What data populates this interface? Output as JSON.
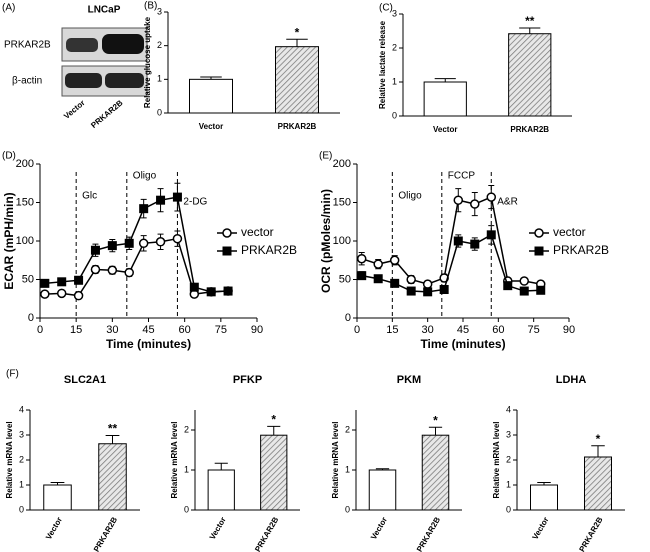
{
  "blot": {
    "panel": "(A)",
    "title": "LNCaP",
    "rows": [
      "PRKAR2B",
      "β-actin"
    ],
    "lanes": [
      "Vector",
      "PRKAR2B"
    ]
  },
  "chart_data": [
    {
      "panel": "(B)",
      "type": "bar",
      "categories": [
        "Vector",
        "PRKAR2B"
      ],
      "values": [
        1.0,
        1.97
      ],
      "errors": [
        0.07,
        0.22
      ],
      "colors": [
        "#ffffff",
        "#c4c4c4"
      ],
      "y_label": "Relative glucose uptake",
      "ylim": [
        0,
        3
      ],
      "yticks": [
        0,
        1,
        2,
        3
      ],
      "annotation": "*"
    },
    {
      "panel": "(C)",
      "type": "bar",
      "categories": [
        "Vector",
        "PRKAR2B"
      ],
      "values": [
        1.0,
        2.42
      ],
      "errors": [
        0.1,
        0.17
      ],
      "colors": [
        "#ffffff",
        "#c4c4c4"
      ],
      "y_label": "Relative lactate release",
      "ylim": [
        0,
        3
      ],
      "yticks": [
        0,
        1,
        2,
        3
      ],
      "annotation": "**"
    },
    {
      "panel": "(D)",
      "type": "line",
      "x_label": "Time (minutes)",
      "y_label": "ECAR (mPH/min)",
      "x": [
        2,
        9,
        16,
        23,
        30,
        37,
        43,
        50,
        57,
        64,
        71,
        78
      ],
      "series": [
        {
          "name": "vector",
          "color": "#000000",
          "marker": "open-circle",
          "values": [
            31,
            32,
            29,
            63,
            62,
            59,
            97,
            99,
            103,
            31,
            34,
            35
          ],
          "errors": [
            3,
            3,
            3,
            5,
            5,
            5,
            10,
            10,
            10,
            3,
            3,
            3
          ]
        },
        {
          "name": "PRKAR2B",
          "color": "#000000",
          "marker": "filled-square",
          "values": [
            45,
            47,
            49,
            88,
            94,
            97,
            142,
            153,
            157,
            40,
            34,
            35
          ],
          "errors": [
            4,
            4,
            4,
            8,
            8,
            8,
            12,
            15,
            18,
            4,
            3,
            3
          ]
        }
      ],
      "xlim": [
        0,
        90
      ],
      "xticks": [
        0,
        15,
        30,
        45,
        60,
        75,
        90
      ],
      "ylim": [
        0,
        200
      ],
      "yticks": [
        0,
        50,
        100,
        150,
        200
      ],
      "events": [
        {
          "x": 15,
          "label": "Glc"
        },
        {
          "x": 36,
          "label": "Oligo"
        },
        {
          "x": 57,
          "label": "2-DG"
        }
      ],
      "legend": "right"
    },
    {
      "panel": "(E)",
      "type": "line",
      "x_label": "Time (minutes)",
      "y_label": "OCR (pMoles/min)",
      "x": [
        2,
        9,
        16,
        23,
        30,
        37,
        43,
        50,
        57,
        64,
        71,
        78
      ],
      "series": [
        {
          "name": "vector",
          "color": "#000000",
          "marker": "open-circle",
          "values": [
            77,
            70,
            75,
            50,
            44,
            52,
            153,
            148,
            157,
            48,
            48,
            44
          ],
          "errors": [
            8,
            6,
            6,
            5,
            4,
            5,
            15,
            15,
            15,
            4,
            4,
            4
          ]
        },
        {
          "name": "PRKAR2B",
          "color": "#000000",
          "marker": "filled-square",
          "values": [
            55,
            51,
            45,
            35,
            34,
            37,
            100,
            96,
            108,
            42,
            35,
            36
          ],
          "errors": [
            5,
            4,
            4,
            4,
            4,
            4,
            8,
            8,
            12,
            4,
            3,
            3
          ]
        }
      ],
      "xlim": [
        0,
        90
      ],
      "xticks": [
        0,
        15,
        30,
        45,
        60,
        75,
        90
      ],
      "ylim": [
        0,
        200
      ],
      "yticks": [
        0,
        50,
        100,
        150,
        200
      ],
      "events": [
        {
          "x": 15,
          "label": "Oligo"
        },
        {
          "x": 36,
          "label": "FCCP"
        },
        {
          "x": 57,
          "label": "A&R"
        }
      ],
      "legend": "right"
    },
    {
      "panel": "(F)",
      "type": "bar",
      "title": "SLC2A1",
      "categories": [
        "Vector",
        "PRKAR2B"
      ],
      "values": [
        1.0,
        2.65
      ],
      "errors": [
        0.1,
        0.33
      ],
      "colors": [
        "#ffffff",
        "#c4c4c4"
      ],
      "y_label": "Relative mRNA level",
      "ylim": [
        0,
        4
      ],
      "yticks": [
        0,
        1,
        2,
        3,
        4
      ],
      "annotation": "**"
    },
    {
      "type": "bar",
      "title": "PFKP",
      "categories": [
        "Vector",
        "PRKAR2B"
      ],
      "values": [
        1.0,
        1.87
      ],
      "errors": [
        0.17,
        0.22
      ],
      "colors": [
        "#ffffff",
        "#c4c4c4"
      ],
      "y_label": "Relative mRNA level",
      "ylim": [
        0,
        2.5
      ],
      "yticks": [
        0,
        1,
        2
      ],
      "annotation": "*"
    },
    {
      "type": "bar",
      "title": "PKM",
      "categories": [
        "Vector",
        "PRKAR2B"
      ],
      "values": [
        1.0,
        1.87
      ],
      "errors": [
        0.03,
        0.2
      ],
      "colors": [
        "#ffffff",
        "#c4c4c4"
      ],
      "y_label": "Relative mRNA level",
      "ylim": [
        0,
        2.5
      ],
      "yticks": [
        0,
        1,
        2
      ],
      "annotation": "*"
    },
    {
      "type": "bar",
      "title": "LDHA",
      "categories": [
        "Vector",
        "PRKAR2B"
      ],
      "values": [
        1.0,
        2.12
      ],
      "errors": [
        0.1,
        0.45
      ],
      "colors": [
        "#ffffff",
        "#c4c4c4"
      ],
      "y_label": "Relative mRNA level",
      "ylim": [
        0,
        4
      ],
      "yticks": [
        0,
        1,
        2,
        3,
        4
      ],
      "annotation": "*"
    }
  ]
}
